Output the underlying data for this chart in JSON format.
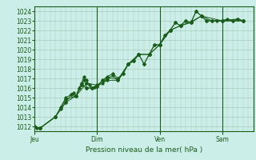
{
  "xlabel": "Pression niveau de la mer( hPa )",
  "bg_color": "#cceee8",
  "plot_bg_color": "#cceee8",
  "line_color": "#1a5c1a",
  "grid_color": "#aaccbb",
  "axis_color": "#1a5c1a",
  "ylim": [
    1011.5,
    1024.5
  ],
  "yticks": [
    1012,
    1013,
    1014,
    1015,
    1016,
    1017,
    1018,
    1019,
    1020,
    1021,
    1022,
    1023,
    1024
  ],
  "xlim": [
    0,
    252
  ],
  "day_positions": [
    0,
    72,
    144,
    216
  ],
  "day_names": [
    "Jeu",
    "Dim",
    "Ven",
    "Sam"
  ],
  "series1_x": [
    0,
    3,
    6,
    24,
    30,
    36,
    42,
    45,
    48,
    51,
    54,
    57,
    60,
    63,
    66,
    69,
    72,
    78,
    84,
    90,
    96,
    102,
    108,
    114,
    120,
    126,
    132,
    138,
    144,
    150,
    156,
    162,
    168,
    174,
    180,
    186,
    192,
    198,
    204,
    210,
    216,
    222,
    228,
    234,
    240
  ],
  "series1_y": [
    1012.0,
    1011.8,
    1011.8,
    1013.0,
    1013.8,
    1014.5,
    1015.3,
    1015.5,
    1015.2,
    1016.0,
    1016.5,
    1017.2,
    1016.8,
    1016.3,
    1016.0,
    1016.1,
    1016.2,
    1016.5,
    1017.0,
    1017.3,
    1016.8,
    1017.5,
    1018.5,
    1018.8,
    1019.5,
    1018.5,
    1019.5,
    1020.5,
    1020.5,
    1021.5,
    1022.0,
    1022.8,
    1022.5,
    1023.0,
    1022.8,
    1024.0,
    1023.5,
    1023.0,
    1023.0,
    1023.0,
    1023.0,
    1023.2,
    1023.0,
    1023.2,
    1023.0
  ],
  "series2_x": [
    0,
    6,
    24,
    30,
    36,
    42,
    48,
    54,
    57,
    60,
    66,
    72,
    78,
    84,
    90,
    96,
    102,
    108,
    114,
    120,
    126,
    132,
    138,
    144,
    150,
    156,
    162,
    168,
    174,
    180,
    186,
    192,
    198,
    216,
    234,
    240
  ],
  "series2_y": [
    1012.0,
    1011.8,
    1013.0,
    1014.0,
    1015.0,
    1015.3,
    1015.2,
    1016.3,
    1016.8,
    1016.0,
    1016.0,
    1016.2,
    1016.8,
    1017.2,
    1017.5,
    1017.0,
    1017.5,
    1018.5,
    1018.8,
    1019.5,
    1018.5,
    1019.5,
    1020.5,
    1020.5,
    1021.5,
    1022.0,
    1022.8,
    1022.5,
    1023.0,
    1022.8,
    1024.0,
    1023.5,
    1023.0,
    1023.0,
    1023.2,
    1023.0
  ],
  "series3_x": [
    0,
    6,
    24,
    36,
    48,
    60,
    72,
    84,
    96,
    108,
    120,
    132,
    144,
    156,
    168,
    180,
    192,
    204,
    216,
    228,
    240
  ],
  "series3_y": [
    1012.0,
    1011.8,
    1013.0,
    1014.8,
    1015.2,
    1016.5,
    1016.3,
    1017.1,
    1016.9,
    1018.5,
    1019.5,
    1019.5,
    1020.5,
    1022.0,
    1022.5,
    1022.9,
    1023.5,
    1023.0,
    1023.0,
    1023.0,
    1023.0
  ],
  "series4_x": [
    0,
    6,
    24,
    36,
    48,
    54,
    60,
    66,
    72,
    84,
    96,
    108,
    120,
    132,
    144,
    156,
    168,
    180,
    192,
    216,
    240
  ],
  "series4_y": [
    1012.0,
    1011.8,
    1013.0,
    1014.5,
    1015.2,
    1016.3,
    1016.0,
    1016.0,
    1016.2,
    1016.8,
    1016.8,
    1018.5,
    1019.5,
    1019.5,
    1020.5,
    1022.0,
    1022.5,
    1022.8,
    1023.5,
    1023.0,
    1023.0
  ]
}
